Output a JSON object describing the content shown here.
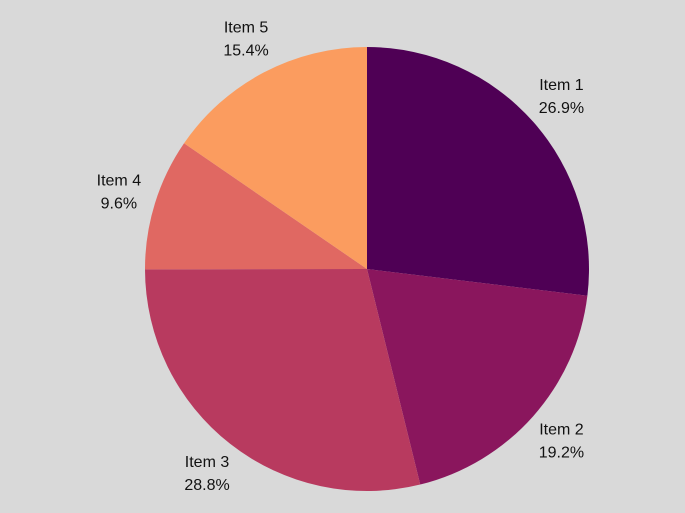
{
  "chart_data": {
    "type": "pie",
    "categories": [
      "Item 1",
      "Item 2",
      "Item 3",
      "Item 4",
      "Item 5"
    ],
    "values": [
      26.9,
      19.2,
      28.8,
      9.6,
      15.4
    ],
    "value_labels": [
      "26.9%",
      "19.2%",
      "28.8%",
      "9.6%",
      "15.4%"
    ],
    "colors": [
      "#4f0055",
      "#8a165d",
      "#b83a5f",
      "#e06862",
      "#fb9c5f"
    ]
  }
}
